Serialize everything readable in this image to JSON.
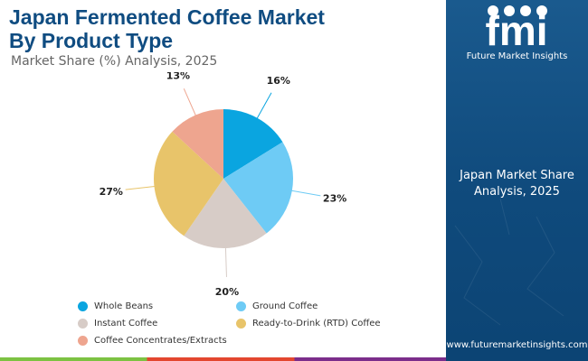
{
  "header": {
    "title_line1": "Japan Fermented Coffee Market",
    "title_line2": "By Product Type",
    "subtitle": "Market Share (%) Analysis, 2025"
  },
  "sidebar": {
    "logo_text": "fmi",
    "logo_subtitle": "Future Market Insights",
    "label_line1": "Japan Market Share",
    "label_line2": "Analysis, 2025",
    "website": "www.futuremarketinsights.com",
    "background_color": "#1a5a8e"
  },
  "chart_data": {
    "type": "pie",
    "title": "",
    "categories": [
      "Whole Beans",
      "Ground Coffee",
      "Instant Coffee",
      "Ready-to-Drink (RTD) Coffee",
      "Coffee Concentrates/Extracts"
    ],
    "values": [
      16,
      23,
      20,
      27,
      13
    ],
    "value_labels": [
      "16%",
      "23%",
      "20%",
      "27%",
      "13%"
    ],
    "colors": [
      "#0aa5e0",
      "#6ecbf5",
      "#d7ccc7",
      "#e8c46a",
      "#eea58f"
    ],
    "start_angle": "12 o'clock, clockwise",
    "legend_position": "bottom"
  }
}
